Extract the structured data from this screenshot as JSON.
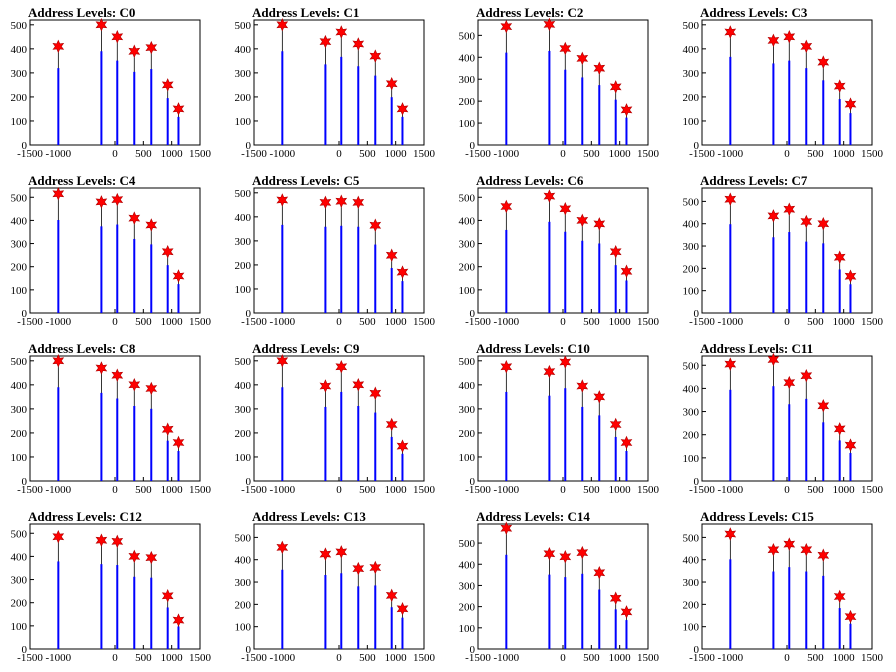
{
  "chart_data": {
    "type": "bar",
    "x_ticks": [
      -1500,
      -1000,
      0,
      500,
      1000,
      1500
    ],
    "x_tick_labels": [
      "-1500",
      "-1000",
      "0",
      "500",
      "1000",
      "1500"
    ],
    "xlim": [
      -1500,
      1500
    ],
    "peak_x": [
      -1000,
      -240,
      40,
      340,
      640,
      930,
      1120
    ],
    "colors": {
      "hist": "#0000ff",
      "marker": "#ff0000",
      "axis": "#000000"
    },
    "panels": [
      {
        "title": "Address Levels: C0",
        "ylim": [
          0,
          520
        ],
        "y_ticks": [
          0,
          100,
          200,
          300,
          400,
          500
        ],
        "peaks": [
          410,
          500,
          450,
          390,
          405,
          250,
          150
        ]
      },
      {
        "title": "Address Levels: C1",
        "ylim": [
          0,
          520
        ],
        "y_ticks": [
          0,
          100,
          200,
          300,
          400,
          500
        ],
        "peaks": [
          500,
          430,
          470,
          420,
          370,
          255,
          150
        ]
      },
      {
        "title": "Address Levels: C2",
        "ylim": [
          0,
          570
        ],
        "y_ticks": [
          0,
          100,
          200,
          300,
          400,
          500
        ],
        "peaks": [
          540,
          550,
          440,
          395,
          350,
          265,
          160
        ]
      },
      {
        "title": "Address Levels: C3",
        "ylim": [
          0,
          520
        ],
        "y_ticks": [
          0,
          100,
          200,
          300,
          400,
          500
        ],
        "peaks": [
          470,
          435,
          450,
          410,
          345,
          245,
          170
        ]
      },
      {
        "title": "Address Levels: C4",
        "ylim": [
          0,
          540
        ],
        "y_ticks": [
          0,
          100,
          200,
          300,
          400,
          500
        ],
        "peaks": [
          515,
          480,
          490,
          410,
          380,
          265,
          160
        ]
      },
      {
        "title": "Address Levels: C5",
        "ylim": [
          0,
          520
        ],
        "y_ticks": [
          0,
          100,
          200,
          300,
          400,
          500
        ],
        "peaks": [
          470,
          460,
          465,
          460,
          365,
          240,
          170
        ]
      },
      {
        "title": "Address Levels: C6",
        "ylim": [
          0,
          540
        ],
        "y_ticks": [
          0,
          100,
          200,
          300,
          400,
          500
        ],
        "peaks": [
          460,
          505,
          450,
          400,
          385,
          265,
          180
        ]
      },
      {
        "title": "Address Levels: C7",
        "ylim": [
          0,
          560
        ],
        "y_ticks": [
          0,
          100,
          200,
          300,
          400,
          500
        ],
        "peaks": [
          510,
          435,
          465,
          410,
          400,
          250,
          165
        ]
      },
      {
        "title": "Address Levels: C8",
        "ylim": [
          0,
          520
        ],
        "y_ticks": [
          0,
          100,
          200,
          300,
          400,
          500
        ],
        "peaks": [
          500,
          470,
          440,
          400,
          385,
          215,
          160
        ]
      },
      {
        "title": "Address Levels: C9",
        "ylim": [
          0,
          520
        ],
        "y_ticks": [
          0,
          100,
          200,
          300,
          400,
          500
        ],
        "peaks": [
          500,
          395,
          475,
          400,
          365,
          235,
          145
        ]
      },
      {
        "title": "Address Levels: C10",
        "ylim": [
          0,
          520
        ],
        "y_ticks": [
          0,
          100,
          200,
          300,
          400,
          500
        ],
        "peaks": [
          475,
          455,
          495,
          395,
          350,
          235,
          160
        ]
      },
      {
        "title": "Address Levels: C11",
        "ylim": [
          0,
          540
        ],
        "y_ticks": [
          0,
          100,
          200,
          300,
          400,
          500
        ],
        "peaks": [
          505,
          525,
          425,
          455,
          325,
          225,
          155
        ]
      },
      {
        "title": "Address Levels: C12",
        "ylim": [
          0,
          540
        ],
        "y_ticks": [
          0,
          100,
          200,
          300,
          400,
          500
        ],
        "peaks": [
          485,
          470,
          465,
          400,
          395,
          230,
          125
        ]
      },
      {
        "title": "Address Levels: C13",
        "ylim": [
          0,
          560
        ],
        "y_ticks": [
          0,
          100,
          200,
          300,
          400,
          500
        ],
        "peaks": [
          455,
          425,
          435,
          360,
          365,
          240,
          180
        ]
      },
      {
        "title": "Address Levels: C14",
        "ylim": [
          0,
          590
        ],
        "y_ticks": [
          0,
          100,
          200,
          300,
          400,
          500
        ],
        "peaks": [
          570,
          450,
          435,
          455,
          360,
          240,
          175
        ]
      },
      {
        "title": "Address Levels: C15",
        "ylim": [
          0,
          560
        ],
        "y_ticks": [
          0,
          100,
          200,
          300,
          400,
          500
        ],
        "peaks": [
          515,
          445,
          470,
          445,
          420,
          235,
          145
        ]
      }
    ]
  }
}
